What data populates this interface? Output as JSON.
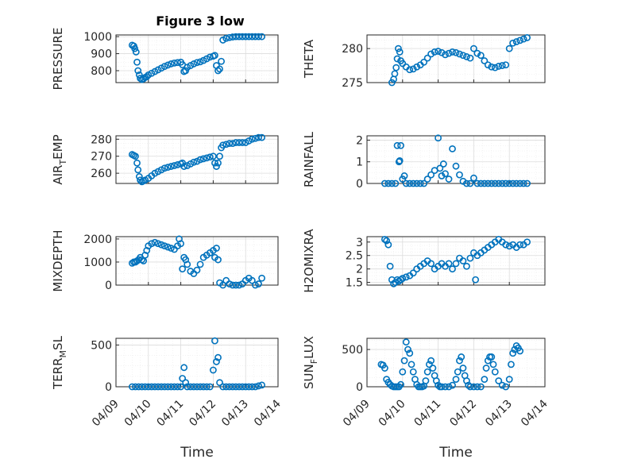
{
  "chart_data": {
    "type": "scatter",
    "title": "Figure 3 low",
    "marker_color": "#0072bd",
    "x_tick_labels": [
      "04/09",
      "04/10",
      "04/11",
      "04/12",
      "04/13",
      "04/14"
    ],
    "xlabel": "Time",
    "panels": [
      {
        "id": "pressure",
        "ylabel": "PRESSURE",
        "ylim": [
          730,
          1010
        ],
        "yticks": [
          800,
          900,
          1000
        ],
        "x": [
          9.5,
          9.55,
          9.58,
          9.62,
          9.65,
          9.68,
          9.72,
          9.75,
          9.8,
          9.85,
          9.9,
          9.95,
          10.0,
          10.1,
          10.2,
          10.3,
          10.4,
          10.5,
          10.6,
          10.7,
          10.8,
          10.9,
          11.0,
          11.05,
          11.1,
          11.15,
          11.2,
          11.3,
          11.4,
          11.5,
          11.6,
          11.7,
          11.8,
          11.9,
          12.0,
          12.05,
          12.1,
          12.15,
          12.2,
          12.25,
          12.3,
          12.4,
          12.5,
          12.6,
          12.7,
          12.8,
          12.9,
          13.0,
          13.1,
          13.2,
          13.3,
          13.4,
          13.5
        ],
        "y": [
          950,
          945,
          930,
          910,
          850,
          800,
          775,
          755,
          748,
          752,
          760,
          765,
          775,
          785,
          795,
          805,
          815,
          825,
          833,
          840,
          845,
          848,
          850,
          835,
          795,
          800,
          820,
          830,
          840,
          848,
          852,
          860,
          870,
          880,
          885,
          890,
          830,
          800,
          810,
          855,
          980,
          990,
          995,
          998,
          1000,
          1000,
          1000,
          1000,
          1000,
          1000,
          1000,
          1000,
          1000
        ]
      },
      {
        "id": "theta",
        "ylabel": "THETA",
        "ylim": [
          275,
          282
        ],
        "yticks": [
          275,
          280
        ],
        "x": [
          9.7,
          9.75,
          9.78,
          9.82,
          9.85,
          9.88,
          9.92,
          9.95,
          10.0,
          10.1,
          10.2,
          10.3,
          10.4,
          10.5,
          10.6,
          10.7,
          10.8,
          10.9,
          11.0,
          11.1,
          11.2,
          11.3,
          11.4,
          11.5,
          11.6,
          11.7,
          11.8,
          11.9,
          12.0,
          12.1,
          12.2,
          12.3,
          12.4,
          12.5,
          12.6,
          12.7,
          12.8,
          12.9,
          13.0,
          13.1,
          13.2,
          13.3,
          13.4,
          13.5
        ],
        "y": [
          275.0,
          275.5,
          276.3,
          277.2,
          278.5,
          280.0,
          279.5,
          278.2,
          277.8,
          277.3,
          276.9,
          277.0,
          277.3,
          277.6,
          278.0,
          278.6,
          279.2,
          279.5,
          279.6,
          279.4,
          279.1,
          279.3,
          279.5,
          279.4,
          279.2,
          279.0,
          278.8,
          278.6,
          280.0,
          279.3,
          279.0,
          278.2,
          277.6,
          277.3,
          277.2,
          277.4,
          277.5,
          277.6,
          280.0,
          280.8,
          281.0,
          281.2,
          281.4,
          281.6
        ]
      },
      {
        "id": "air-temp",
        "ylabel": "AIR_TEMP",
        "ylim": [
          254,
          282
        ],
        "yticks": [
          260,
          270,
          280
        ],
        "x": [
          9.5,
          9.55,
          9.6,
          9.65,
          9.68,
          9.72,
          9.75,
          9.8,
          9.85,
          9.9,
          10.0,
          10.1,
          10.2,
          10.3,
          10.4,
          10.5,
          10.6,
          10.7,
          10.8,
          10.9,
          11.0,
          11.05,
          11.1,
          11.2,
          11.3,
          11.4,
          11.5,
          11.6,
          11.7,
          11.8,
          11.9,
          12.0,
          12.05,
          12.1,
          12.15,
          12.2,
          12.25,
          12.3,
          12.4,
          12.5,
          12.6,
          12.7,
          12.8,
          12.9,
          13.0,
          13.1,
          13.2,
          13.3,
          13.4,
          13.5
        ],
        "y": [
          271,
          270.5,
          270,
          266,
          262,
          258,
          256,
          255,
          255.5,
          256,
          257,
          258.5,
          260,
          261,
          262,
          263,
          263.5,
          264,
          264.5,
          265,
          265.5,
          266,
          264,
          264.5,
          265.5,
          266.5,
          267,
          268,
          268.5,
          269,
          269.5,
          270,
          266,
          264,
          266,
          270,
          275,
          276.5,
          277,
          277.5,
          277.5,
          278,
          278,
          278,
          278,
          279,
          280,
          280.5,
          281,
          281
        ]
      },
      {
        "id": "rainfall",
        "ylabel": "RAINFALL",
        "ylim": [
          0,
          2.2
        ],
        "yticks": [
          0,
          1,
          2
        ],
        "x": [
          9.5,
          9.6,
          9.7,
          9.8,
          9.85,
          9.9,
          9.92,
          9.95,
          10.0,
          10.05,
          10.1,
          10.2,
          10.3,
          10.4,
          10.5,
          10.6,
          10.7,
          10.8,
          10.9,
          11.0,
          11.05,
          11.1,
          11.15,
          11.2,
          11.3,
          11.4,
          11.5,
          11.6,
          11.7,
          11.8,
          11.9,
          12.0,
          12.1,
          12.2,
          12.3,
          12.4,
          12.5,
          12.6,
          12.7,
          12.8,
          12.9,
          13.0,
          13.1,
          13.2,
          13.3,
          13.4,
          13.5
        ],
        "y": [
          0,
          0,
          0,
          0,
          1.75,
          1.0,
          1.05,
          1.75,
          0.2,
          0.35,
          0,
          0,
          0,
          0,
          0,
          0,
          0.2,
          0.4,
          0.6,
          2.1,
          0.7,
          0.35,
          0.9,
          0.45,
          0.2,
          1.6,
          0.8,
          0.4,
          0.1,
          0,
          0,
          0.25,
          0,
          0,
          0,
          0,
          0,
          0,
          0,
          0,
          0,
          0,
          0,
          0,
          0,
          0,
          0
        ]
      },
      {
        "id": "mixdepth",
        "ylabel": "MIXDEPTH",
        "ylim": [
          0,
          2100
        ],
        "yticks": [
          0,
          1000,
          2000
        ],
        "x": [
          9.5,
          9.55,
          9.6,
          9.65,
          9.7,
          9.75,
          9.8,
          9.85,
          9.9,
          9.95,
          10.0,
          10.1,
          10.2,
          10.3,
          10.4,
          10.5,
          10.6,
          10.7,
          10.8,
          10.9,
          10.95,
          11.0,
          11.05,
          11.1,
          11.15,
          11.2,
          11.3,
          11.4,
          11.5,
          11.6,
          11.7,
          11.8,
          11.9,
          12.0,
          12.05,
          12.1,
          12.15,
          12.2,
          12.3,
          12.4,
          12.5,
          12.6,
          12.7,
          12.8,
          12.9,
          13.0,
          13.1,
          13.2,
          13.3,
          13.4,
          13.5
        ],
        "y": [
          950,
          1000,
          1000,
          1050,
          1100,
          1200,
          1100,
          1050,
          1300,
          1500,
          1700,
          1800,
          1850,
          1800,
          1750,
          1700,
          1650,
          1600,
          1550,
          1700,
          2000,
          1800,
          700,
          1200,
          1100,
          900,
          600,
          500,
          650,
          900,
          1200,
          1300,
          1400,
          1500,
          1200,
          1600,
          1100,
          100,
          0,
          200,
          50,
          0,
          0,
          0,
          50,
          200,
          300,
          200,
          0,
          50,
          300
        ]
      },
      {
        "id": "h2omixra",
        "ylabel": "H2OMIXRA",
        "ylim": [
          1.4,
          3.2
        ],
        "yticks": [
          1.5,
          2,
          2.5,
          3
        ],
        "x": [
          9.5,
          9.55,
          9.6,
          9.65,
          9.7,
          9.75,
          9.8,
          9.85,
          9.9,
          9.95,
          10.0,
          10.1,
          10.2,
          10.3,
          10.4,
          10.5,
          10.6,
          10.7,
          10.8,
          10.9,
          11.0,
          11.1,
          11.2,
          11.3,
          11.4,
          11.5,
          11.6,
          11.7,
          11.8,
          11.9,
          12.0,
          12.05,
          12.1,
          12.2,
          12.3,
          12.4,
          12.5,
          12.6,
          12.7,
          12.8,
          12.9,
          13.0,
          13.1,
          13.2,
          13.3,
          13.4,
          13.5
        ],
        "y": [
          3.1,
          3.05,
          2.9,
          2.1,
          1.6,
          1.45,
          1.5,
          1.6,
          1.55,
          1.6,
          1.65,
          1.7,
          1.75,
          1.85,
          2.0,
          2.1,
          2.2,
          2.3,
          2.2,
          2.0,
          2.1,
          2.2,
          2.1,
          2.2,
          2.0,
          2.2,
          2.4,
          2.3,
          2.1,
          2.4,
          2.6,
          1.6,
          2.5,
          2.6,
          2.7,
          2.8,
          2.9,
          3.0,
          3.1,
          3.0,
          2.9,
          2.85,
          2.9,
          2.8,
          2.9,
          2.9,
          3.0
        ]
      },
      {
        "id": "terr-msl",
        "ylabel": "TERR_MSL",
        "ylim": [
          0,
          580
        ],
        "yticks": [
          0,
          500
        ],
        "x": [
          9.5,
          9.6,
          9.7,
          9.8,
          9.9,
          10.0,
          10.1,
          10.2,
          10.3,
          10.4,
          10.5,
          10.6,
          10.7,
          10.8,
          10.9,
          11.0,
          11.05,
          11.1,
          11.15,
          11.2,
          11.3,
          11.4,
          11.5,
          11.6,
          11.7,
          11.8,
          11.9,
          12.0,
          12.05,
          12.1,
          12.15,
          12.2,
          12.3,
          12.4,
          12.5,
          12.6,
          12.7,
          12.8,
          12.9,
          13.0,
          13.1,
          13.2,
          13.3,
          13.4,
          13.5
        ],
        "y": [
          0,
          0,
          0,
          0,
          0,
          0,
          0,
          0,
          0,
          0,
          0,
          0,
          0,
          0,
          0,
          0,
          100,
          230,
          50,
          0,
          0,
          0,
          0,
          0,
          0,
          0,
          0,
          200,
          550,
          300,
          350,
          50,
          0,
          0,
          0,
          0,
          0,
          0,
          0,
          0,
          0,
          0,
          0,
          10,
          20
        ]
      },
      {
        "id": "sun-flux",
        "ylabel": "SUN_FLUX",
        "ylim": [
          0,
          650
        ],
        "yticks": [
          0,
          500
        ],
        "x": [
          9.4,
          9.45,
          9.5,
          9.55,
          9.6,
          9.65,
          9.7,
          9.75,
          9.8,
          9.85,
          9.9,
          9.95,
          10.0,
          10.05,
          10.1,
          10.15,
          10.2,
          10.25,
          10.3,
          10.35,
          10.4,
          10.45,
          10.5,
          10.55,
          10.6,
          10.65,
          10.7,
          10.75,
          10.8,
          10.85,
          10.9,
          10.95,
          11.0,
          11.05,
          11.1,
          11.2,
          11.3,
          11.4,
          11.5,
          11.55,
          11.6,
          11.65,
          11.7,
          11.75,
          11.8,
          11.85,
          11.9,
          12.0,
          12.1,
          12.2,
          12.3,
          12.35,
          12.4,
          12.45,
          12.5,
          12.55,
          12.6,
          12.7,
          12.8,
          12.9,
          13.0,
          13.05,
          13.1,
          13.15,
          13.2,
          13.25,
          13.3
        ],
        "y": [
          300,
          290,
          250,
          100,
          60,
          30,
          10,
          0,
          0,
          0,
          0,
          30,
          200,
          350,
          600,
          500,
          450,
          300,
          200,
          100,
          30,
          0,
          0,
          0,
          10,
          80,
          200,
          300,
          350,
          250,
          150,
          80,
          20,
          0,
          0,
          0,
          0,
          20,
          100,
          200,
          350,
          400,
          250,
          150,
          80,
          20,
          0,
          0,
          0,
          0,
          100,
          250,
          350,
          400,
          400,
          300,
          200,
          80,
          20,
          0,
          100,
          300,
          450,
          500,
          550,
          520,
          480
        ]
      }
    ]
  }
}
